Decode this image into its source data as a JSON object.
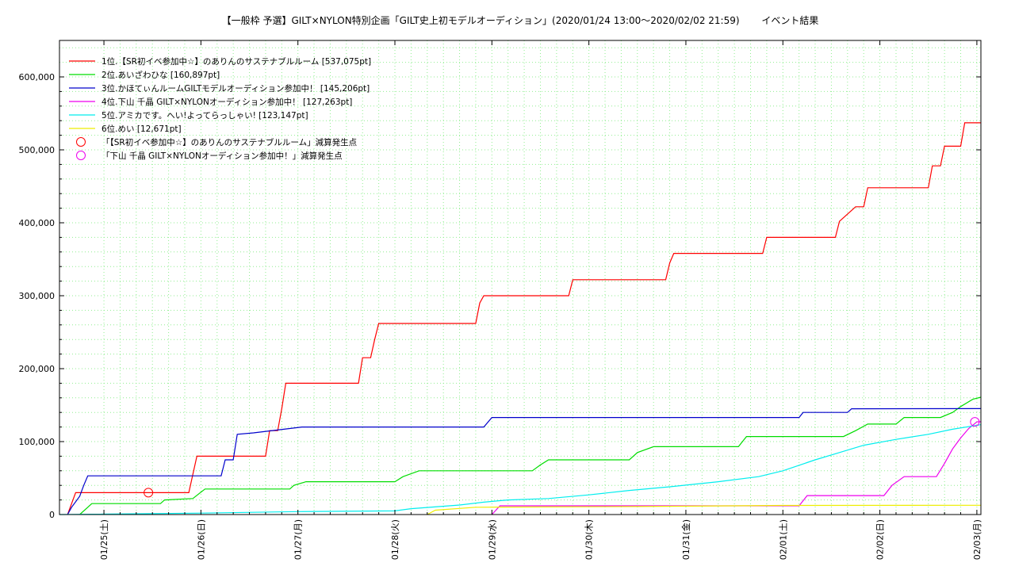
{
  "chart_data": {
    "type": "line",
    "title": "【一般枠 予選】GILT×NYLON特別企画「GILT史上初モデルオーディション」(2020/01/24 13:00〜2020/02/02 21:59)　　 イベント結果",
    "xlabel": "",
    "ylabel": "",
    "ylim": [
      0,
      650000
    ],
    "xlim": [
      "2020-01-24 13:00",
      "2020-02-03 01:00"
    ],
    "grid": true,
    "legend_position": "top-left",
    "x_ticks": [
      "01/25(土)",
      "01/26(日)",
      "01/27(月)",
      "01/28(火)",
      "01/29(水)",
      "01/30(木)",
      "01/31(金)",
      "02/01(土)",
      "02/02(日)",
      "02/03(月)"
    ],
    "y_ticks": [
      "0",
      "100,000",
      "200,000",
      "300,000",
      "400,000",
      "500,000",
      "600,000"
    ],
    "series": [
      {
        "name": "1位.【SR初イベ参加中☆】のありんのサステナブルルーム [537,075pt]",
        "color": "#ff0000",
        "points": [
          [
            "2020-01-24 15:00",
            0
          ],
          [
            "2020-01-24 16:00",
            15000
          ],
          [
            "2020-01-24 17:00",
            30000
          ],
          [
            "2020-01-25 21:00",
            30000
          ],
          [
            "2020-01-25 22:00",
            55000
          ],
          [
            "2020-01-25 23:00",
            80000
          ],
          [
            "2020-01-26 16:00",
            80000
          ],
          [
            "2020-01-26 17:00",
            115000
          ],
          [
            "2020-01-26 19:00",
            115000
          ],
          [
            "2020-01-26 20:00",
            145000
          ],
          [
            "2020-01-26 21:00",
            180000
          ],
          [
            "2020-01-27 15:00",
            180000
          ],
          [
            "2020-01-27 16:00",
            215000
          ],
          [
            "2020-01-27 18:00",
            215000
          ],
          [
            "2020-01-27 19:00",
            240000
          ],
          [
            "2020-01-27 20:00",
            262000
          ],
          [
            "2020-01-28 20:00",
            262000
          ],
          [
            "2020-01-28 21:00",
            290000
          ],
          [
            "2020-01-28 22:00",
            300000
          ],
          [
            "2020-01-29 19:00",
            300000
          ],
          [
            "2020-01-29 20:00",
            322000
          ],
          [
            "2020-01-30 19:00",
            322000
          ],
          [
            "2020-01-30 20:00",
            345000
          ],
          [
            "2020-01-30 21:00",
            358000
          ],
          [
            "2020-01-31 19:00",
            358000
          ],
          [
            "2020-01-31 20:00",
            380000
          ],
          [
            "2020-02-01 13:00",
            380000
          ],
          [
            "2020-02-01 14:00",
            402000
          ],
          [
            "2020-02-01 18:00",
            422000
          ],
          [
            "2020-02-01 20:00",
            422000
          ],
          [
            "2020-02-01 21:00",
            448000
          ],
          [
            "2020-02-02 12:00",
            448000
          ],
          [
            "2020-02-02 13:00",
            478000
          ],
          [
            "2020-02-02 15:00",
            478000
          ],
          [
            "2020-02-02 16:00",
            505000
          ],
          [
            "2020-02-02 20:00",
            505000
          ],
          [
            "2020-02-02 21:00",
            537075
          ],
          [
            "2020-02-03 01:00",
            537075
          ]
        ]
      },
      {
        "name": "2位.あいざわひな [160,897pt]",
        "color": "#00dd00",
        "points": [
          [
            "2020-01-24 18:00",
            0
          ],
          [
            "2020-01-24 20:00",
            10000
          ],
          [
            "2020-01-24 21:00",
            15000
          ],
          [
            "2020-01-25 14:00",
            15000
          ],
          [
            "2020-01-25 15:00",
            20000
          ],
          [
            "2020-01-25 22:00",
            22000
          ],
          [
            "2020-01-26 01:00",
            35000
          ],
          [
            "2020-01-26 22:00",
            35000
          ],
          [
            "2020-01-26 23:00",
            40000
          ],
          [
            "2020-01-27 02:00",
            45000
          ],
          [
            "2020-01-28 00:00",
            45000
          ],
          [
            "2020-01-28 02:00",
            52000
          ],
          [
            "2020-01-28 06:00",
            60000
          ],
          [
            "2020-01-29 10:00",
            60000
          ],
          [
            "2020-01-29 12:00",
            68000
          ],
          [
            "2020-01-29 14:00",
            75000
          ],
          [
            "2020-01-30 10:00",
            75000
          ],
          [
            "2020-01-30 12:00",
            85000
          ],
          [
            "2020-01-30 16:00",
            93000
          ],
          [
            "2020-01-31 13:00",
            93000
          ],
          [
            "2020-01-31 15:00",
            107000
          ],
          [
            "2020-02-01 15:00",
            107000
          ],
          [
            "2020-02-01 18:00",
            115000
          ],
          [
            "2020-02-01 21:00",
            124000
          ],
          [
            "2020-02-02 04:00",
            124000
          ],
          [
            "2020-02-02 06:00",
            133000
          ],
          [
            "2020-02-02 15:00",
            133000
          ],
          [
            "2020-02-02 18:00",
            140000
          ],
          [
            "2020-02-02 20:00",
            148000
          ],
          [
            "2020-02-02 23:00",
            158000
          ],
          [
            "2020-02-03 01:00",
            160897
          ]
        ]
      },
      {
        "name": "3位.かほてぃんルームGILTモデルオーディション参加中！ [145,206pt]",
        "color": "#0000cc",
        "points": [
          [
            "2020-01-24 15:00",
            0
          ],
          [
            "2020-01-24 16:00",
            10000
          ],
          [
            "2020-01-24 18:00",
            25000
          ],
          [
            "2020-01-24 19:00",
            40000
          ],
          [
            "2020-01-24 20:00",
            53000
          ],
          [
            "2020-01-26 05:00",
            53000
          ],
          [
            "2020-01-26 06:00",
            75000
          ],
          [
            "2020-01-26 08:00",
            75000
          ],
          [
            "2020-01-26 09:00",
            110000
          ],
          [
            "2020-01-26 13:00",
            112000
          ],
          [
            "2020-01-27 01:00",
            120000
          ],
          [
            "2020-01-28 22:00",
            120000
          ],
          [
            "2020-01-29 00:00",
            133000
          ],
          [
            "2020-02-01 04:00",
            133000
          ],
          [
            "2020-02-01 05:00",
            140000
          ],
          [
            "2020-02-01 16:00",
            140000
          ],
          [
            "2020-02-01 17:00",
            145000
          ],
          [
            "2020-02-03 01:00",
            145206
          ]
        ]
      },
      {
        "name": "4位.下山 千晶 GILT×NYLONオーディション参加中！ [127,263pt]",
        "color": "#ee00ee",
        "points": [
          [
            "2020-01-29 00:00",
            0
          ],
          [
            "2020-01-29 02:00",
            12000
          ],
          [
            "2020-02-01 04:00",
            12000
          ],
          [
            "2020-02-01 06:00",
            26000
          ],
          [
            "2020-02-02 01:00",
            26000
          ],
          [
            "2020-02-02 03:00",
            40000
          ],
          [
            "2020-02-02 06:00",
            52000
          ],
          [
            "2020-02-02 14:00",
            52000
          ],
          [
            "2020-02-02 16:00",
            70000
          ],
          [
            "2020-02-02 18:00",
            90000
          ],
          [
            "2020-02-02 20:00",
            105000
          ],
          [
            "2020-02-02 22:00",
            118000
          ],
          [
            "2020-02-03 00:00",
            127000
          ],
          [
            "2020-02-03 01:00",
            127263
          ]
        ]
      },
      {
        "name": "5位.アミカです。へい!よってらっしゃい! [123,147pt]",
        "color": "#00eeee",
        "points": [
          [
            "2020-01-24 13:00",
            0
          ],
          [
            "2020-01-26 00:00",
            2000
          ],
          [
            "2020-01-27 00:00",
            4000
          ],
          [
            "2020-01-28 00:00",
            5000
          ],
          [
            "2020-01-28 04:00",
            8000
          ],
          [
            "2020-01-28 16:00",
            13000
          ],
          [
            "2020-01-28 22:00",
            17000
          ],
          [
            "2020-01-29 04:00",
            20000
          ],
          [
            "2020-01-29 14:00",
            22000
          ],
          [
            "2020-01-30 00:00",
            27000
          ],
          [
            "2020-01-30 10:00",
            33000
          ],
          [
            "2020-01-30 20:00",
            38000
          ],
          [
            "2020-01-31 08:00",
            45000
          ],
          [
            "2020-01-31 18:00",
            52000
          ],
          [
            "2020-02-01 00:00",
            60000
          ],
          [
            "2020-02-01 08:00",
            75000
          ],
          [
            "2020-02-01 14:00",
            85000
          ],
          [
            "2020-02-01 20:00",
            95000
          ],
          [
            "2020-02-02 04:00",
            103000
          ],
          [
            "2020-02-02 12:00",
            110000
          ],
          [
            "2020-02-02 18:00",
            117000
          ],
          [
            "2020-02-03 01:00",
            123147
          ]
        ]
      },
      {
        "name": "6位.めい [12,671pt]",
        "color": "#eeee00",
        "points": [
          [
            "2020-01-28 08:00",
            0
          ],
          [
            "2020-01-28 10:00",
            6000
          ],
          [
            "2020-01-28 20:00",
            10000
          ],
          [
            "2020-01-30 12:00",
            11000
          ],
          [
            "2020-02-01 00:00",
            12500
          ],
          [
            "2020-02-03 01:00",
            12671
          ]
        ]
      }
    ],
    "markers": [
      {
        "name": "「【SR初イベ参加中☆】のありんのサステナブルルーム」減算発生点",
        "color": "#ff0000",
        "x": "2020-01-25 11:00",
        "y": 30000
      },
      {
        "name": "「下山 千晶 GILT×NYLONオーディション参加中！」減算発生点",
        "color": "#ee00ee",
        "x": "2020-02-02 23:30",
        "y": 127000
      }
    ]
  }
}
